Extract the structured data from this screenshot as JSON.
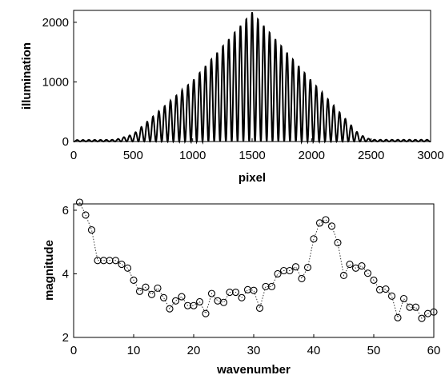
{
  "chart_data": [
    {
      "type": "line",
      "xlabel": "pixel",
      "ylabel": "illumination",
      "xlim": [
        0,
        3000
      ],
      "ylim": [
        0,
        2200
      ],
      "x_ticks": [
        0,
        500,
        1000,
        1500,
        2000,
        2500,
        3000
      ],
      "y_ticks": [
        0,
        1000,
        2000
      ],
      "grid": false,
      "series_color": "#000000",
      "series": [
        {
          "envelope_x": [
            0,
            350,
            500,
            1000,
            1500,
            2000,
            2400,
            2500,
            3000
          ],
          "envelope_y": [
            25,
            30,
            120,
            1020,
            2170,
            1020,
            120,
            30,
            30
          ],
          "fringe_period": 49
        }
      ]
    },
    {
      "type": "scatter",
      "xlabel": "wavenumber",
      "ylabel": "magnitude",
      "xlim": [
        0,
        60
      ],
      "ylim": [
        2,
        6.2
      ],
      "x_ticks": [
        0,
        10,
        20,
        30,
        40,
        50,
        60
      ],
      "y_ticks": [
        2,
        4,
        6
      ],
      "grid": false,
      "marker": "open-circle",
      "line_style": "dotted",
      "series_color": "#000000",
      "x": [
        1,
        2,
        3,
        4,
        5,
        6,
        7,
        8,
        9,
        10,
        11,
        12,
        13,
        14,
        15,
        16,
        17,
        18,
        19,
        20,
        21,
        22,
        23,
        24,
        25,
        26,
        27,
        28,
        29,
        30,
        31,
        32,
        33,
        34,
        35,
        36,
        37,
        38,
        39,
        40,
        41,
        42,
        43,
        44,
        45,
        46,
        47,
        48,
        49,
        50,
        51,
        52,
        53,
        54,
        55,
        56,
        57,
        58,
        59,
        60
      ],
      "y": [
        6.25,
        5.85,
        5.38,
        4.42,
        4.42,
        4.42,
        4.42,
        4.3,
        4.18,
        3.8,
        3.45,
        3.58,
        3.35,
        3.55,
        3.25,
        2.9,
        3.15,
        3.28,
        3.0,
        3.0,
        3.12,
        2.75,
        3.38,
        3.15,
        3.1,
        3.42,
        3.42,
        3.25,
        3.5,
        3.48,
        2.92,
        3.6,
        3.6,
        4.0,
        4.1,
        4.1,
        4.22,
        3.85,
        4.2,
        5.1,
        5.6,
        5.7,
        5.5,
        4.98,
        3.95,
        4.3,
        4.18,
        4.25,
        4.02,
        3.8,
        3.5,
        3.52,
        3.3,
        2.62,
        3.22,
        2.95,
        2.95,
        2.6,
        2.75,
        2.8
      ]
    }
  ]
}
